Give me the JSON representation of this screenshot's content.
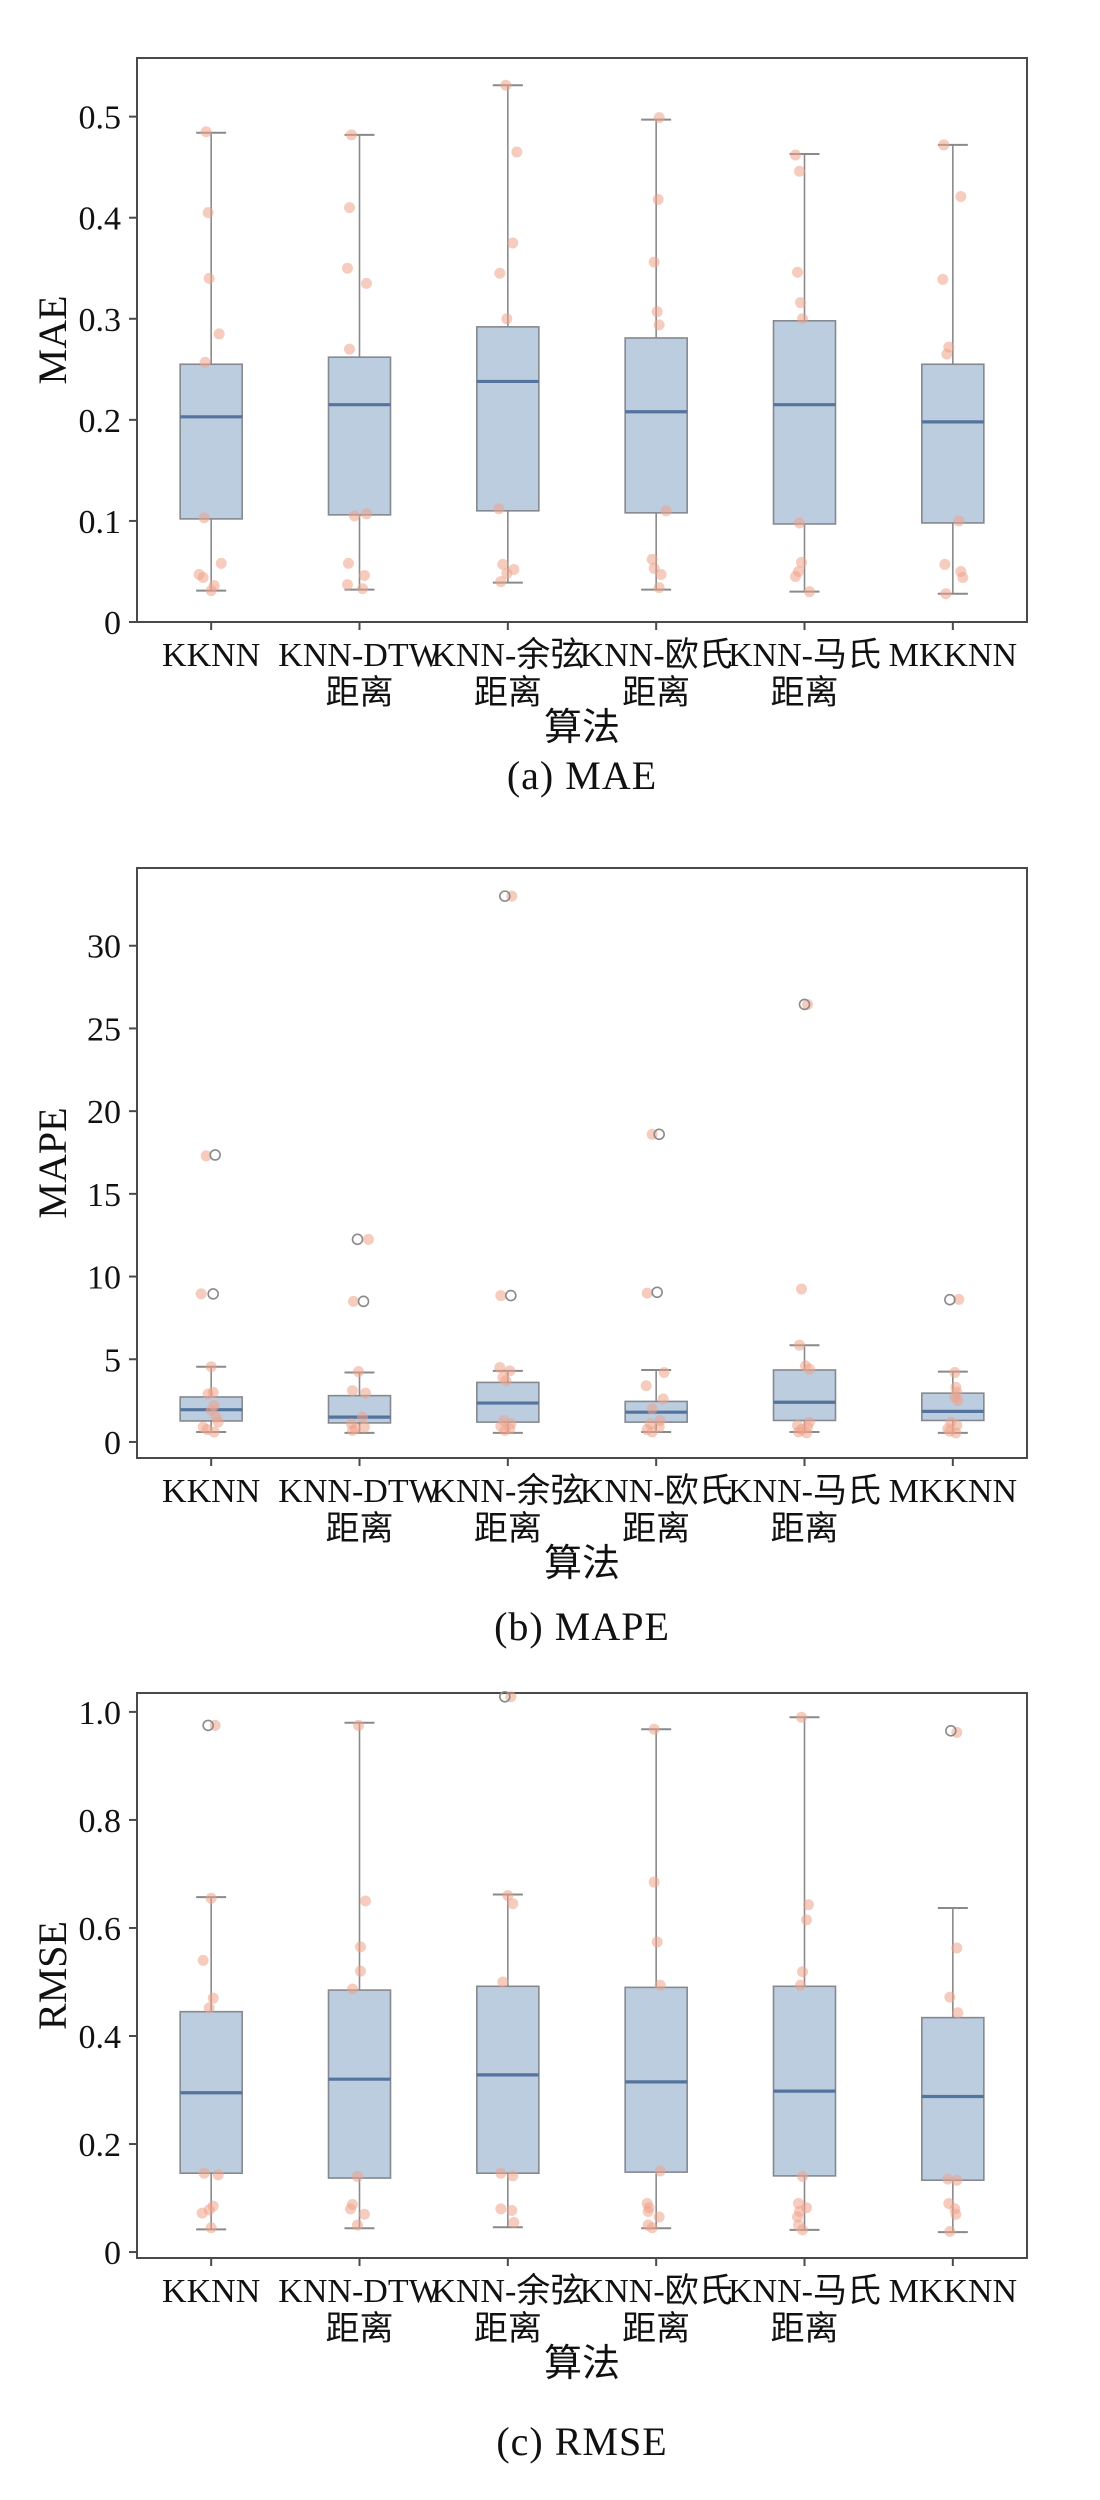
{
  "figure": {
    "background": "#ffffff"
  },
  "style": {
    "box_fill": "#bccde0",
    "box_edge": "#85898f",
    "median_color": "#54749e",
    "whisker_color": "#8a8a8a",
    "point_color": "#efa28a",
    "flier_edge": "#8a8a8a",
    "axis_color": "#4a4a4a",
    "text_color": "#111111"
  },
  "chart_data": [
    {
      "type": "boxplot",
      "panel": "a",
      "caption": "(a) MAE",
      "ylabel": "MAE",
      "xlabel": "算法",
      "ylim": [
        0,
        0.558
      ],
      "yticks": [
        0,
        0.1,
        0.2,
        0.3,
        0.4,
        0.5
      ],
      "ytick_labels": [
        "0",
        "0.1",
        "0.2",
        "0.3",
        "0.4",
        "0.5"
      ],
      "categories": [
        [
          "KKNN"
        ],
        [
          "KNN-DTW",
          "距离"
        ],
        [
          "KNN-余弦",
          "距离"
        ],
        [
          "KNN-欧氏",
          "距离"
        ],
        [
          "KNN-马氏",
          "距离"
        ],
        [
          "MKKNN"
        ]
      ],
      "boxes": [
        {
          "whislo": 0.031,
          "q1": 0.102,
          "med": 0.203,
          "q3": 0.255,
          "whishi": 0.484
        },
        {
          "whislo": 0.032,
          "q1": 0.106,
          "med": 0.215,
          "q3": 0.262,
          "whishi": 0.482
        },
        {
          "whislo": 0.039,
          "q1": 0.11,
          "med": 0.238,
          "q3": 0.292,
          "whishi": 0.531
        },
        {
          "whislo": 0.032,
          "q1": 0.108,
          "med": 0.208,
          "q3": 0.281,
          "whishi": 0.497
        },
        {
          "whislo": 0.03,
          "q1": 0.097,
          "med": 0.215,
          "q3": 0.298,
          "whishi": 0.463
        },
        {
          "whislo": 0.028,
          "q1": 0.098,
          "med": 0.198,
          "q3": 0.255,
          "whishi": 0.472
        }
      ],
      "fliers": [
        [],
        [],
        [],
        [],
        [],
        []
      ],
      "points": [
        [
          [
            0.485,
            -5
          ],
          [
            0.405,
            -3
          ],
          [
            0.34,
            -2
          ],
          [
            0.285,
            8
          ],
          [
            0.257,
            -6
          ],
          [
            0.103,
            -7
          ],
          [
            0.058,
            10
          ],
          [
            0.047,
            -12
          ],
          [
            0.044,
            -8
          ],
          [
            0.036,
            3
          ],
          [
            0.031,
            0
          ]
        ],
        [
          [
            0.482,
            -8
          ],
          [
            0.41,
            -10
          ],
          [
            0.35,
            -12
          ],
          [
            0.335,
            7
          ],
          [
            0.27,
            -10
          ],
          [
            0.107,
            7
          ],
          [
            0.105,
            -5
          ],
          [
            0.058,
            -11
          ],
          [
            0.046,
            5
          ],
          [
            0.037,
            -12
          ],
          [
            0.033,
            3
          ]
        ],
        [
          [
            0.531,
            -2
          ],
          [
            0.465,
            9
          ],
          [
            0.375,
            5
          ],
          [
            0.345,
            -8
          ],
          [
            0.3,
            -1
          ],
          [
            0.112,
            -9
          ],
          [
            0.057,
            -5
          ],
          [
            0.052,
            6
          ],
          [
            0.048,
            -1
          ],
          [
            0.04,
            -7
          ]
        ],
        [
          [
            0.499,
            3
          ],
          [
            0.418,
            2
          ],
          [
            0.356,
            -2
          ],
          [
            0.307,
            1
          ],
          [
            0.294,
            3
          ],
          [
            0.11,
            10
          ],
          [
            0.062,
            -4
          ],
          [
            0.053,
            -2
          ],
          [
            0.047,
            5
          ],
          [
            0.034,
            3
          ]
        ],
        [
          [
            0.462,
            -9
          ],
          [
            0.446,
            -5
          ],
          [
            0.346,
            -7
          ],
          [
            0.316,
            -4
          ],
          [
            0.3,
            -2
          ],
          [
            0.098,
            -5
          ],
          [
            0.059,
            -3
          ],
          [
            0.05,
            -6
          ],
          [
            0.045,
            -9
          ],
          [
            0.03,
            5
          ]
        ],
        [
          [
            0.472,
            -9
          ],
          [
            0.421,
            8
          ],
          [
            0.339,
            -10
          ],
          [
            0.272,
            -4
          ],
          [
            0.265,
            -6
          ],
          [
            0.1,
            6
          ],
          [
            0.057,
            -8
          ],
          [
            0.05,
            8
          ],
          [
            0.044,
            10
          ],
          [
            0.028,
            -7
          ]
        ]
      ]
    },
    {
      "type": "boxplot",
      "panel": "b",
      "caption": "(b) MAPE",
      "ylabel": "MAPE",
      "xlabel": "算法",
      "ylim": [
        -0.97,
        34.7
      ],
      "yticks": [
        0,
        5,
        10,
        15,
        20,
        25,
        30
      ],
      "ytick_labels": [
        "0",
        "5",
        "10",
        "15",
        "20",
        "25",
        "30"
      ],
      "categories": [
        [
          "KKNN"
        ],
        [
          "KNN-DTW",
          "距离"
        ],
        [
          "KNN-余弦",
          "距离"
        ],
        [
          "KNN-欧氏",
          "距离"
        ],
        [
          "KNN-马氏",
          "距离"
        ],
        [
          "MKKNN"
        ]
      ],
      "boxes": [
        {
          "whislo": 0.6,
          "q1": 1.27,
          "med": 1.95,
          "q3": 2.72,
          "whishi": 4.55
        },
        {
          "whislo": 0.55,
          "q1": 1.15,
          "med": 1.5,
          "q3": 2.8,
          "whishi": 4.2
        },
        {
          "whislo": 0.55,
          "q1": 1.2,
          "med": 2.35,
          "q3": 3.6,
          "whishi": 4.3
        },
        {
          "whislo": 0.6,
          "q1": 1.2,
          "med": 1.8,
          "q3": 2.45,
          "whishi": 4.35
        },
        {
          "whislo": 0.6,
          "q1": 1.3,
          "med": 2.4,
          "q3": 4.35,
          "whishi": 5.85
        },
        {
          "whislo": 0.55,
          "q1": 1.3,
          "med": 1.85,
          "q3": 2.95,
          "whishi": 4.25
        }
      ],
      "fliers": [
        [
          [
            17.35,
            4
          ],
          [
            8.95,
            2
          ]
        ],
        [
          [
            12.25,
            -2
          ],
          [
            8.5,
            4
          ]
        ],
        [
          [
            33.0,
            -3
          ],
          [
            8.85,
            3
          ]
        ],
        [
          [
            18.6,
            3
          ],
          [
            9.05,
            1
          ]
        ],
        [
          [
            26.45,
            0
          ]
        ],
        [
          [
            8.6,
            -3
          ]
        ]
      ],
      "points": [
        [
          [
            17.3,
            -5
          ],
          [
            8.95,
            -10
          ],
          [
            4.55,
            0
          ],
          [
            3.0,
            2
          ],
          [
            2.9,
            -3
          ],
          [
            2.2,
            3
          ],
          [
            1.9,
            0
          ],
          [
            1.5,
            5
          ],
          [
            1.2,
            7
          ],
          [
            0.9,
            -8
          ],
          [
            0.75,
            -4
          ],
          [
            0.6,
            3
          ]
        ],
        [
          [
            12.25,
            9
          ],
          [
            8.5,
            -6
          ],
          [
            4.25,
            -1
          ],
          [
            3.1,
            -7
          ],
          [
            2.95,
            6
          ],
          [
            1.5,
            3
          ],
          [
            1.1,
            -8
          ],
          [
            0.9,
            5
          ],
          [
            0.8,
            -4
          ],
          [
            0.7,
            -7
          ]
        ],
        [
          [
            33.0,
            4
          ],
          [
            8.85,
            -7
          ],
          [
            4.5,
            -8
          ],
          [
            4.3,
            2
          ],
          [
            3.9,
            -5
          ],
          [
            3.7,
            -2
          ],
          [
            1.3,
            -4
          ],
          [
            1.1,
            3
          ],
          [
            0.95,
            -7
          ],
          [
            0.8,
            2
          ],
          [
            0.7,
            -3
          ]
        ],
        [
          [
            18.6,
            -4
          ],
          [
            9.0,
            -9
          ],
          [
            4.2,
            8
          ],
          [
            3.4,
            -10
          ],
          [
            2.6,
            7
          ],
          [
            2.0,
            -4
          ],
          [
            1.3,
            4
          ],
          [
            1.1,
            -6
          ],
          [
            0.9,
            3
          ],
          [
            0.75,
            -9
          ],
          [
            0.6,
            -4
          ]
        ],
        [
          [
            26.45,
            3
          ],
          [
            9.25,
            -3
          ],
          [
            5.85,
            -5
          ],
          [
            4.6,
            1
          ],
          [
            4.4,
            5
          ],
          [
            1.2,
            5
          ],
          [
            1.0,
            -7
          ],
          [
            0.9,
            3
          ],
          [
            0.75,
            -3
          ],
          [
            0.6,
            -6
          ],
          [
            0.55,
            2
          ]
        ],
        [
          [
            8.62,
            6
          ],
          [
            4.2,
            2
          ],
          [
            3.3,
            3
          ],
          [
            3.0,
            4
          ],
          [
            2.7,
            2
          ],
          [
            2.5,
            5
          ],
          [
            1.2,
            -2
          ],
          [
            1.0,
            4
          ],
          [
            0.8,
            -5
          ],
          [
            0.65,
            -3
          ],
          [
            0.55,
            3
          ]
        ]
      ]
    },
    {
      "type": "boxplot",
      "panel": "c",
      "caption": "(c) RMSE",
      "ylabel": "RMSE",
      "xlabel": "算法",
      "ylim": [
        -0.011,
        1.035
      ],
      "yticks": [
        0,
        0.2,
        0.4,
        0.6,
        0.8,
        1.0
      ],
      "ytick_labels": [
        "0",
        "0.2",
        "0.4",
        "0.6",
        "0.8",
        "1.0"
      ],
      "categories": [
        [
          "KKNN"
        ],
        [
          "KNN-DTW",
          "距离"
        ],
        [
          "KNN-余弦",
          "距离"
        ],
        [
          "KNN-欧氏",
          "距离"
        ],
        [
          "KNN-马氏",
          "距离"
        ],
        [
          "MKKNN"
        ]
      ],
      "boxes": [
        {
          "whislo": 0.042,
          "q1": 0.146,
          "med": 0.295,
          "q3": 0.445,
          "whishi": 0.657
        },
        {
          "whislo": 0.044,
          "q1": 0.137,
          "med": 0.32,
          "q3": 0.485,
          "whishi": 0.98
        },
        {
          "whislo": 0.046,
          "q1": 0.146,
          "med": 0.328,
          "q3": 0.492,
          "whishi": 0.662
        },
        {
          "whislo": 0.044,
          "q1": 0.148,
          "med": 0.315,
          "q3": 0.49,
          "whishi": 0.968
        },
        {
          "whislo": 0.041,
          "q1": 0.141,
          "med": 0.298,
          "q3": 0.492,
          "whishi": 0.99
        },
        {
          "whislo": 0.037,
          "q1": 0.133,
          "med": 0.288,
          "q3": 0.434,
          "whishi": 0.637
        }
      ],
      "fliers": [
        [
          [
            0.975,
            -3
          ]
        ],
        [],
        [
          [
            1.028,
            -3
          ]
        ],
        [],
        [],
        [
          [
            0.965,
            -2
          ]
        ]
      ],
      "points": [
        [
          [
            0.975,
            4
          ],
          [
            0.655,
            0
          ],
          [
            0.54,
            -8
          ],
          [
            0.47,
            2
          ],
          [
            0.452,
            -2
          ],
          [
            0.146,
            -7
          ],
          [
            0.143,
            7
          ],
          [
            0.085,
            2
          ],
          [
            0.078,
            -2
          ],
          [
            0.072,
            -9
          ],
          [
            0.045,
            0
          ]
        ],
        [
          [
            0.975,
            -1
          ],
          [
            0.65,
            6
          ],
          [
            0.565,
            1
          ],
          [
            0.52,
            1
          ],
          [
            0.487,
            -7
          ],
          [
            0.14,
            -2
          ],
          [
            0.088,
            -7
          ],
          [
            0.08,
            -9
          ],
          [
            0.07,
            5
          ],
          [
            0.05,
            -2
          ]
        ],
        [
          [
            1.028,
            3
          ],
          [
            0.66,
            0
          ],
          [
            0.645,
            5
          ],
          [
            0.5,
            -5
          ],
          [
            0.146,
            -7
          ],
          [
            0.141,
            5
          ],
          [
            0.08,
            -7
          ],
          [
            0.077,
            4
          ],
          [
            0.055,
            6
          ]
        ],
        [
          [
            0.968,
            -2
          ],
          [
            0.685,
            -2
          ],
          [
            0.574,
            1
          ],
          [
            0.494,
            4
          ],
          [
            0.15,
            4
          ],
          [
            0.09,
            -9
          ],
          [
            0.082,
            -7
          ],
          [
            0.075,
            -8
          ],
          [
            0.065,
            3
          ],
          [
            0.05,
            -8
          ],
          [
            0.045,
            -4
          ]
        ],
        [
          [
            0.99,
            -3
          ],
          [
            0.643,
            4
          ],
          [
            0.615,
            2
          ],
          [
            0.519,
            -2
          ],
          [
            0.494,
            -4
          ],
          [
            0.14,
            -2
          ],
          [
            0.09,
            -6
          ],
          [
            0.082,
            2
          ],
          [
            0.075,
            -5
          ],
          [
            0.065,
            -7
          ],
          [
            0.05,
            -6
          ],
          [
            0.041,
            -2
          ]
        ],
        [
          [
            0.962,
            4
          ],
          [
            0.563,
            4
          ],
          [
            0.472,
            -3
          ],
          [
            0.443,
            5
          ],
          [
            0.135,
            -5
          ],
          [
            0.133,
            4
          ],
          [
            0.09,
            -4
          ],
          [
            0.08,
            2
          ],
          [
            0.07,
            3
          ],
          [
            0.038,
            -3
          ]
        ]
      ]
    }
  ]
}
